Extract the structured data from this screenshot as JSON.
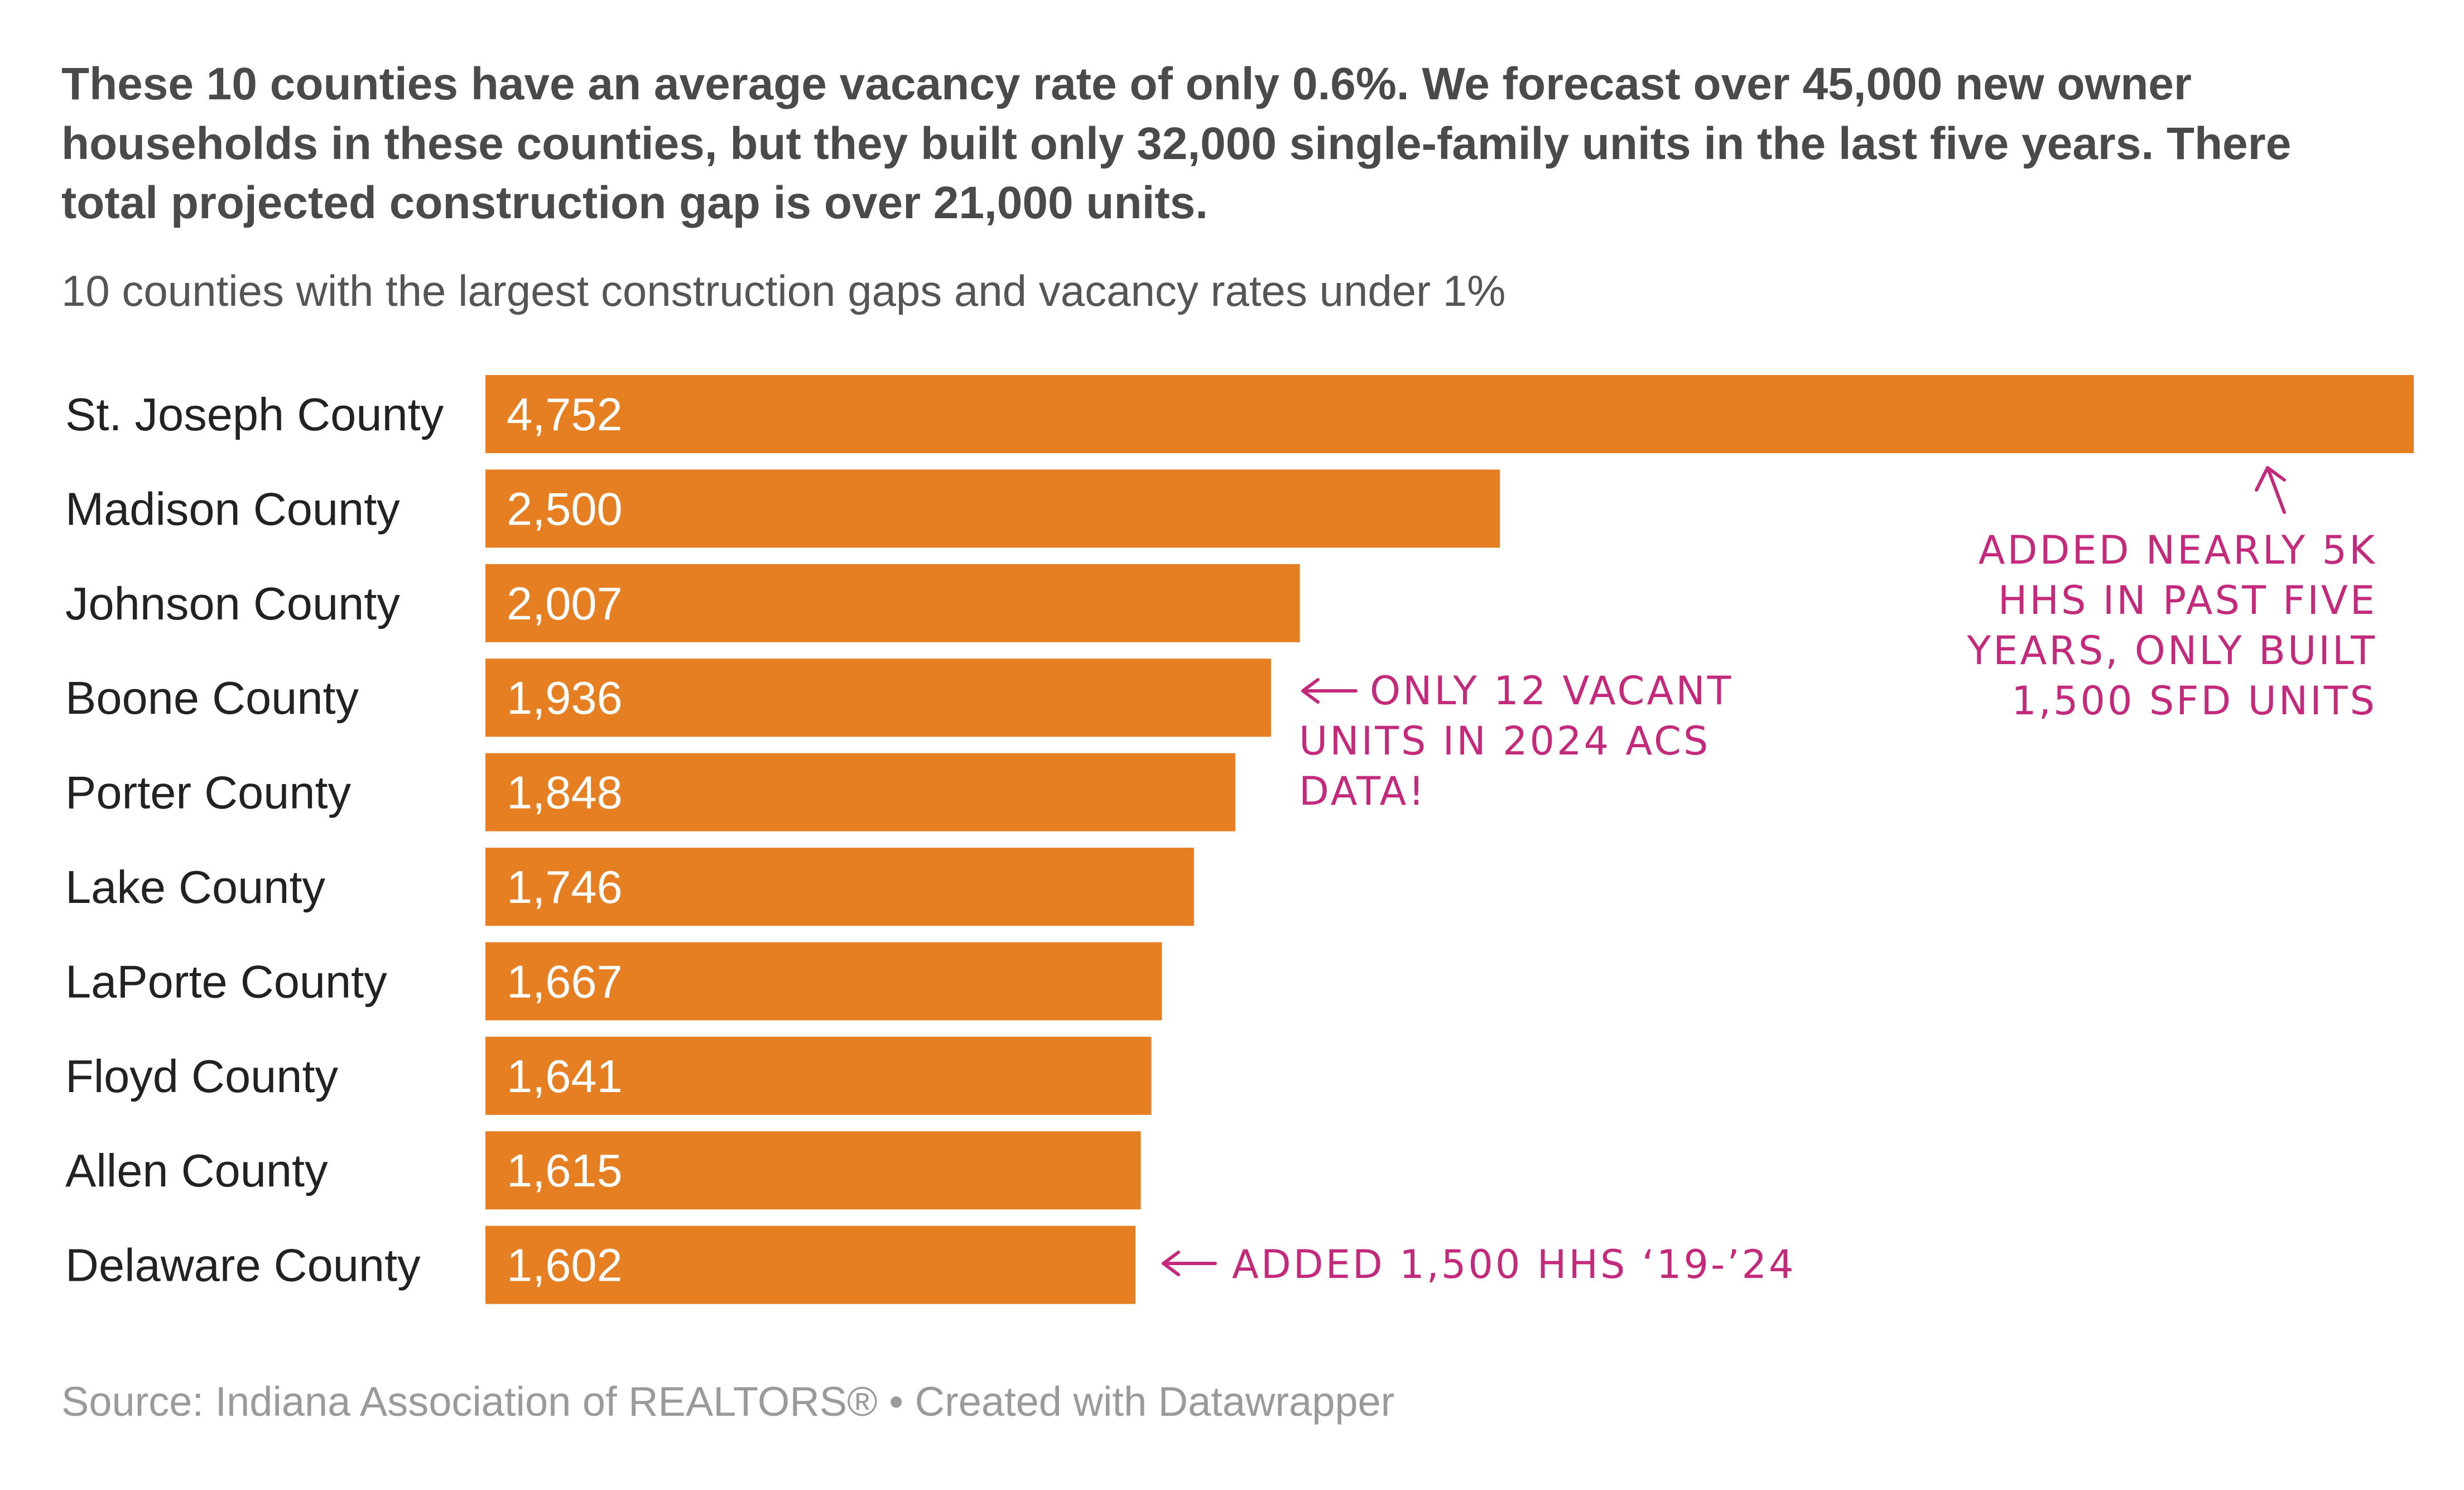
{
  "headline": [
    "These 10 counties have an average vacancy rate of only 0.6%. We forecast over 45,000 new owner",
    "households in these counties, but they built only 32,000 single-family units in the last five years. There",
    "total projected construction gap is over 21,000 units."
  ],
  "subtitle": "10 counties with the largest construction gaps and vacancy rates under 1%",
  "footer": "Source: Indiana Association of REALTORS® • Created with Datawrapper",
  "colors": {
    "bar": "#e67e22",
    "annotation": "#c42a7c",
    "title": "#4a4a4a"
  },
  "chart_data": {
    "type": "bar",
    "orientation": "horizontal",
    "categories": [
      "St. Joseph County",
      "Madison County",
      "Johnson County",
      "Boone County",
      "Porter County",
      "Lake County",
      "LaPorte County",
      "Floyd County",
      "Allen County",
      "Delaware County"
    ],
    "values": [
      4752,
      2500,
      2007,
      1936,
      1848,
      1746,
      1667,
      1641,
      1615,
      1602
    ],
    "value_labels": [
      "4,752",
      "2,500",
      "2,007",
      "1,936",
      "1,848",
      "1,746",
      "1,667",
      "1,641",
      "1,615",
      "1,602"
    ],
    "xlim": [
      0,
      4752
    ],
    "grid": false,
    "legend": "none",
    "annotations": [
      {
        "category": "St. Joseph County",
        "lines": [
          "ADDED NEARLY 5K",
          "HHS IN PAST FIVE",
          "YEARS, ONLY BUILT",
          "1,500 SFD UNITS"
        ]
      },
      {
        "category": "Boone County",
        "lines": [
          "ONLY 12 VACANT",
          "UNITS IN 2024 ACS",
          "DATA!"
        ]
      },
      {
        "category": "Delaware County",
        "lines": [
          "ADDED 1,500 HHS ‘19-’24"
        ]
      }
    ]
  }
}
